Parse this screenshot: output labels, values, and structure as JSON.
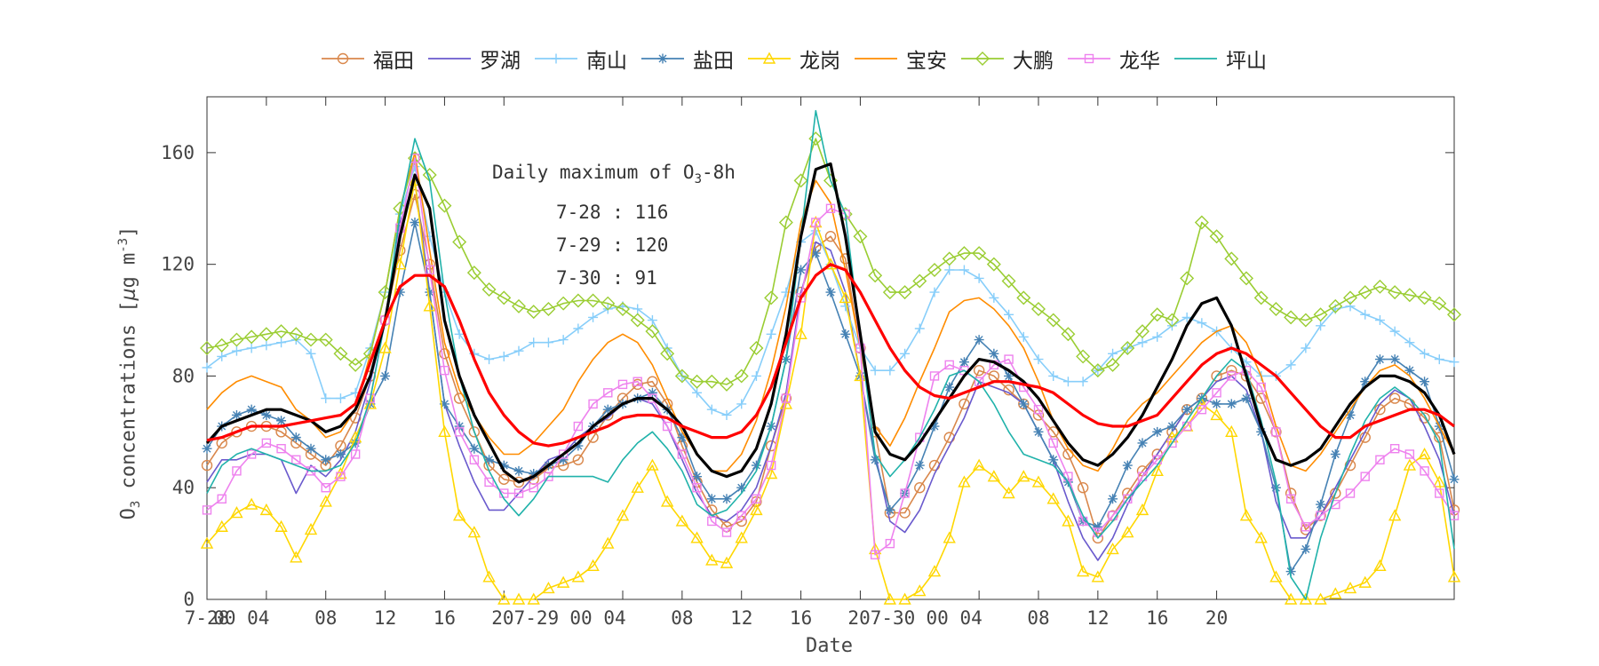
{
  "chart_data": {
    "type": "line",
    "xlabel": "Date",
    "ylabel": {
      "prefix": "O",
      "sub": "3",
      "mid": " concentrations [",
      "mu": "μ",
      "unit": "g m",
      "sup": "-3",
      "end": "]"
    },
    "ylim": [
      0,
      180
    ],
    "yticks": [
      0,
      40,
      80,
      120,
      160
    ],
    "x_range_hours": [
      0,
      84
    ],
    "x_tick_labels": [
      {
        "hour": 0,
        "label": "7-28"
      },
      {
        "hour": 4,
        "label": "00 04"
      },
      {
        "hour": 8,
        "label": "08"
      },
      {
        "hour": 12,
        "label": "12"
      },
      {
        "hour": 16,
        "label": "16"
      },
      {
        "hour": 20,
        "label": "207-29"
      },
      {
        "hour": 28,
        "label": "00 04"
      },
      {
        "hour": 32,
        "label": "08"
      },
      {
        "hour": 36,
        "label": "12"
      },
      {
        "hour": 40,
        "label": "16"
      },
      {
        "hour": 44,
        "label": "207-30"
      },
      {
        "hour": 52,
        "label": "00 04"
      },
      {
        "hour": 56,
        "label": "08"
      },
      {
        "hour": 60,
        "label": "12"
      },
      {
        "hour": 64,
        "label": "16"
      },
      {
        "hour": 68,
        "label": "20"
      }
    ],
    "grid": false,
    "legend_position": "top",
    "annotation": {
      "title_prefix": "Daily maximum of O",
      "title_sub": "3",
      "title_suffix": "-8h",
      "rows": [
        "7-28 : 116",
        "7-29 : 120",
        "7-30 : 91"
      ]
    },
    "x_start_hour": 0,
    "x_step_hours": 1,
    "series": [
      {
        "name": "福田",
        "color": "#d9874b",
        "marker": "circle",
        "values": [
          48,
          56,
          60,
          62,
          62,
          60,
          56,
          52,
          48,
          55,
          65,
          80,
          100,
          125,
          145,
          120,
          88,
          72,
          60,
          48,
          43,
          42,
          43,
          47,
          48,
          50,
          58,
          66,
          72,
          77,
          78,
          70,
          55,
          42,
          32,
          26,
          28,
          35,
          55,
          72,
          110,
          126,
          130,
          122,
          90,
          60,
          31,
          31,
          40,
          48,
          58,
          70,
          82,
          80,
          75,
          70,
          66,
          60,
          52,
          40,
          22,
          30,
          38,
          46,
          52,
          60,
          68,
          72,
          80,
          82,
          80,
          72,
          60,
          38,
          25,
          30,
          38,
          48,
          58,
          68,
          72,
          70,
          65,
          58,
          32
        ]
      },
      {
        "name": "罗湖",
        "color": "#6a5acd",
        "marker": "none",
        "values": [
          42,
          50,
          50,
          52,
          52,
          50,
          38,
          48,
          44,
          50,
          60,
          78,
          100,
          135,
          150,
          110,
          70,
          55,
          42,
          32,
          32,
          38,
          44,
          50,
          52,
          58,
          62,
          65,
          70,
          72,
          70,
          62,
          50,
          38,
          30,
          28,
          32,
          40,
          55,
          74,
          110,
          128,
          125,
          110,
          80,
          52,
          28,
          24,
          32,
          45,
          55,
          65,
          78,
          76,
          74,
          70,
          60,
          50,
          35,
          22,
          14,
          22,
          34,
          44,
          52,
          60,
          68,
          72,
          78,
          80,
          75,
          60,
          35,
          22,
          22,
          30,
          40,
          50,
          60,
          70,
          75,
          72,
          62,
          50,
          30
        ]
      },
      {
        "name": "南山",
        "color": "#87cefa",
        "marker": "plus",
        "values": [
          83,
          87,
          89,
          90,
          91,
          92,
          93,
          88,
          72,
          72,
          74,
          90,
          110,
          138,
          155,
          130,
          110,
          95,
          88,
          86,
          87,
          89,
          92,
          92,
          93,
          97,
          101,
          104,
          105,
          104,
          100,
          90,
          80,
          74,
          68,
          66,
          70,
          80,
          95,
          110,
          128,
          132,
          120,
          105,
          90,
          82,
          82,
          88,
          97,
          110,
          118,
          118,
          115,
          108,
          102,
          94,
          86,
          80,
          78,
          78,
          82,
          88,
          90,
          92,
          94,
          98,
          101,
          99,
          96,
          90,
          85,
          80,
          80,
          84,
          90,
          98,
          104,
          105,
          102,
          100,
          96,
          92,
          88,
          86,
          85
        ]
      },
      {
        "name": "盐田",
        "color": "#4682b4",
        "marker": "asterisk",
        "values": [
          54,
          62,
          66,
          68,
          66,
          64,
          58,
          54,
          50,
          52,
          56,
          70,
          80,
          110,
          135,
          110,
          70,
          62,
          54,
          50,
          48,
          46,
          45,
          48,
          50,
          55,
          62,
          68,
          70,
          72,
          74,
          68,
          58,
          44,
          36,
          36,
          40,
          48,
          62,
          86,
          118,
          124,
          110,
          95,
          80,
          50,
          32,
          38,
          48,
          62,
          76,
          85,
          93,
          88,
          80,
          70,
          60,
          50,
          42,
          28,
          26,
          36,
          48,
          56,
          60,
          62,
          68,
          72,
          70,
          70,
          72,
          60,
          40,
          10,
          18,
          34,
          52,
          66,
          78,
          86,
          86,
          82,
          78,
          62,
          43
        ]
      },
      {
        "name": "龙岗",
        "color": "#ffd700",
        "marker": "triangle",
        "values": [
          20,
          26,
          31,
          34,
          32,
          26,
          15,
          25,
          35,
          45,
          58,
          70,
          90,
          120,
          150,
          105,
          60,
          30,
          24,
          8,
          0,
          0,
          0,
          4,
          6,
          8,
          12,
          20,
          30,
          40,
          48,
          35,
          28,
          22,
          14,
          13,
          22,
          32,
          45,
          70,
          95,
          135,
          120,
          108,
          80,
          18,
          0,
          0,
          3,
          10,
          22,
          42,
          48,
          44,
          38,
          44,
          42,
          36,
          28,
          10,
          8,
          18,
          24,
          32,
          46,
          58,
          62,
          70,
          66,
          60,
          30,
          22,
          8,
          0,
          0,
          0,
          2,
          4,
          6,
          12,
          30,
          48,
          52,
          42,
          8
        ]
      },
      {
        "name": "宝安",
        "color": "#ff8c00",
        "marker": "none",
        "values": [
          68,
          74,
          78,
          80,
          78,
          76,
          68,
          64,
          58,
          60,
          68,
          88,
          110,
          140,
          160,
          125,
          92,
          75,
          66,
          58,
          52,
          52,
          56,
          62,
          68,
          78,
          86,
          92,
          95,
          92,
          84,
          72,
          60,
          52,
          46,
          46,
          52,
          64,
          82,
          105,
          135,
          150,
          142,
          118,
          90,
          62,
          55,
          65,
          78,
          90,
          103,
          107,
          108,
          104,
          98,
          90,
          78,
          64,
          54,
          48,
          46,
          54,
          64,
          70,
          74,
          80,
          86,
          92,
          96,
          98,
          92,
          80,
          62,
          48,
          46,
          52,
          60,
          68,
          76,
          82,
          84,
          80,
          72,
          62,
          52
        ]
      },
      {
        "name": "大鹏",
        "color": "#9acd32",
        "marker": "diamond",
        "values": [
          90,
          91,
          93,
          94,
          95,
          96,
          95,
          93,
          93,
          88,
          84,
          88,
          110,
          140,
          158,
          152,
          141,
          128,
          117,
          111,
          108,
          105,
          103,
          104,
          106,
          107,
          107,
          106,
          104,
          100,
          96,
          88,
          80,
          78,
          78,
          77,
          80,
          90,
          108,
          135,
          150,
          165,
          150,
          138,
          130,
          116,
          110,
          110,
          114,
          118,
          122,
          124,
          124,
          120,
          114,
          108,
          104,
          100,
          95,
          87,
          82,
          84,
          90,
          96,
          102,
          100,
          115,
          135,
          130,
          122,
          115,
          108,
          104,
          101,
          100,
          102,
          105,
          108,
          110,
          112,
          110,
          109,
          108,
          106,
          102
        ]
      },
      {
        "name": "龙华",
        "color": "#ee82ee",
        "marker": "square",
        "values": [
          32,
          36,
          46,
          52,
          56,
          54,
          50,
          46,
          40,
          44,
          52,
          72,
          100,
          133,
          158,
          118,
          82,
          60,
          50,
          42,
          38,
          38,
          40,
          44,
          52,
          62,
          70,
          74,
          77,
          78,
          72,
          62,
          52,
          40,
          28,
          24,
          30,
          36,
          48,
          72,
          108,
          135,
          140,
          138,
          90,
          16,
          20,
          38,
          58,
          80,
          84,
          82,
          78,
          84,
          86,
          76,
          68,
          56,
          44,
          28,
          24,
          30,
          36,
          44,
          50,
          56,
          62,
          68,
          74,
          80,
          82,
          76,
          60,
          36,
          26,
          30,
          34,
          38,
          44,
          50,
          54,
          52,
          46,
          38,
          30
        ]
      },
      {
        "name": "坪山",
        "color": "#20b2aa",
        "marker": "none",
        "values": [
          38,
          48,
          52,
          54,
          52,
          50,
          48,
          46,
          46,
          48,
          56,
          72,
          100,
          138,
          165,
          150,
          110,
          80,
          60,
          46,
          36,
          30,
          36,
          44,
          44,
          44,
          44,
          42,
          50,
          56,
          60,
          54,
          46,
          34,
          30,
          32,
          38,
          46,
          62,
          86,
          130,
          175,
          150,
          138,
          94,
          52,
          44,
          50,
          58,
          68,
          80,
          82,
          78,
          70,
          60,
          52,
          50,
          48,
          42,
          30,
          22,
          28,
          36,
          42,
          48,
          56,
          64,
          72,
          80,
          86,
          82,
          64,
          42,
          8,
          0,
          22,
          38,
          52,
          64,
          72,
          76,
          72,
          66,
          56,
          18
        ]
      },
      {
        "name": "",
        "color": "#000000",
        "marker": "none",
        "width": 3.2,
        "values": [
          56,
          62,
          64,
          66,
          68,
          68,
          66,
          64,
          60,
          62,
          68,
          80,
          100,
          130,
          152,
          140,
          100,
          80,
          66,
          56,
          46,
          42,
          44,
          48,
          52,
          56,
          62,
          66,
          70,
          72,
          72,
          68,
          62,
          52,
          46,
          44,
          46,
          54,
          70,
          95,
          130,
          154,
          156,
          130,
          95,
          60,
          52,
          50,
          56,
          64,
          72,
          80,
          86,
          85,
          82,
          78,
          72,
          64,
          56,
          50,
          48,
          52,
          58,
          66,
          76,
          86,
          98,
          106,
          108,
          98,
          80,
          62,
          50,
          48,
          50,
          54,
          62,
          70,
          76,
          80,
          80,
          78,
          74,
          66,
          52
        ]
      },
      {
        "name": "",
        "color": "#ff0000",
        "marker": "none",
        "width": 3.2,
        "values": [
          57,
          58,
          60,
          62,
          62,
          62,
          63,
          64,
          65,
          66,
          70,
          85,
          100,
          112,
          116,
          116,
          112,
          100,
          86,
          74,
          66,
          60,
          56,
          55,
          56,
          58,
          60,
          62,
          65,
          66,
          66,
          65,
          62,
          60,
          58,
          58,
          60,
          66,
          76,
          92,
          108,
          116,
          120,
          118,
          110,
          100,
          90,
          82,
          76,
          73,
          72,
          74,
          76,
          78,
          78,
          77,
          76,
          74,
          70,
          66,
          63,
          62,
          62,
          64,
          66,
          72,
          78,
          84,
          88,
          90,
          88,
          84,
          80,
          74,
          68,
          62,
          58,
          58,
          62,
          64,
          66,
          68,
          68,
          66,
          62
        ]
      }
    ]
  }
}
